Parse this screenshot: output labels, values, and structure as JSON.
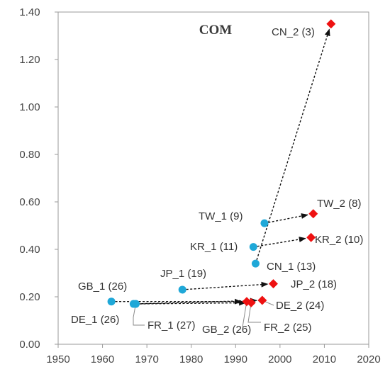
{
  "chart_data": {
    "type": "scatter",
    "title": "COM",
    "xlabel": "",
    "ylabel": "",
    "xlim": [
      1950,
      2020
    ],
    "ylim": [
      0.0,
      1.4
    ],
    "xticks": [
      "1950",
      "1960",
      "1970",
      "1980",
      "1990",
      "2000",
      "2010",
      "2020"
    ],
    "yticks": [
      "0.00",
      "0.20",
      "0.40",
      "0.60",
      "0.80",
      "1.00",
      "1.20",
      "1.40"
    ],
    "grid": false,
    "colors": {
      "period1": "#1fa8d8",
      "period2": "#ee1111",
      "arrow": "#111111"
    },
    "series": [
      {
        "marker": "circle",
        "points": [
          {
            "label": "CN_1 (13)",
            "x": 1994.5,
            "y": 0.34
          },
          {
            "label": "TW_1 (9)",
            "x": 1996.5,
            "y": 0.51
          },
          {
            "label": "KR_1 (11)",
            "x": 1994,
            "y": 0.41
          },
          {
            "label": "JP_1 (19)",
            "x": 1978,
            "y": 0.23
          },
          {
            "label": "GB_1 (26)",
            "x": 1962,
            "y": 0.18
          },
          {
            "label": "DE_1 (26)",
            "x": 1967,
            "y": 0.17
          },
          {
            "label": "FR_1 (27)",
            "x": 1967.5,
            "y": 0.17
          }
        ]
      },
      {
        "marker": "diamond",
        "points": [
          {
            "label": "CN_2 (3)",
            "x": 2011.5,
            "y": 1.35
          },
          {
            "label": "TW_2 (8)",
            "x": 2007.5,
            "y": 0.55
          },
          {
            "label": "KR_2 (10)",
            "x": 2007,
            "y": 0.45
          },
          {
            "label": "JP_2 (18)",
            "x": 1998.5,
            "y": 0.255
          },
          {
            "label": "GB_2 (26)",
            "x": 1992.5,
            "y": 0.18
          },
          {
            "label": "DE_2 (24)",
            "x": 1996,
            "y": 0.185
          },
          {
            "label": "FR_2 (25)",
            "x": 1993.5,
            "y": 0.175
          }
        ]
      }
    ]
  }
}
